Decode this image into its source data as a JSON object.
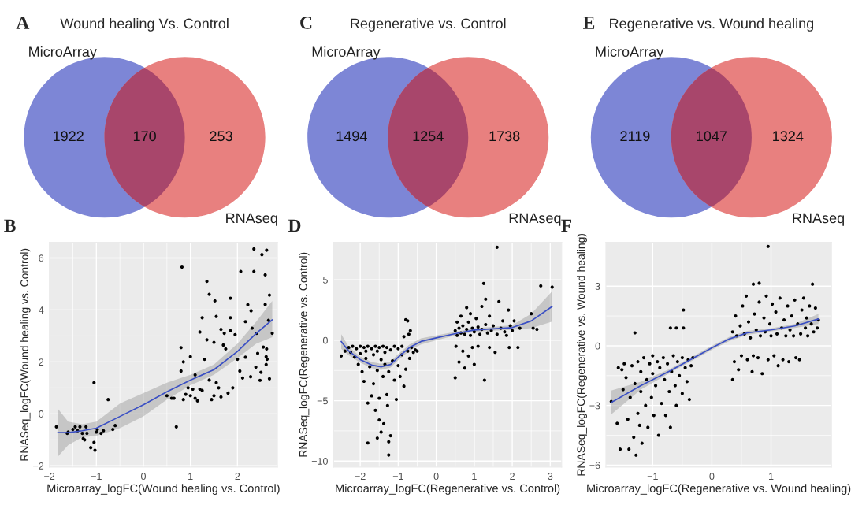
{
  "chart_data": [
    {
      "type": "other",
      "title": "Wound healing Vs. Control",
      "categories": [
        "MicroArray",
        null,
        "RNAseq"
      ],
      "values": [
        1922,
        170,
        253
      ],
      "colors": [
        "#7d86d6",
        "#a8466b",
        "#e8807f"
      ],
      "data_labels": true,
      "annotations": [
        "A"
      ]
    },
    {
      "type": "other",
      "title": "Regenerative vs. Control",
      "categories": [
        "MicroArray",
        null,
        "RNAseq"
      ],
      "values": [
        1494,
        1254,
        1738
      ],
      "colors": [
        "#7d86d6",
        "#a8466b",
        "#e8807f"
      ],
      "data_labels": true,
      "annotations": [
        "C"
      ]
    },
    {
      "type": "other",
      "title": "Regenerative vs. Wound healing",
      "categories": [
        "MicroArray",
        null,
        "RNAseq"
      ],
      "values": [
        2119,
        1047,
        1324
      ],
      "colors": [
        "#7d86d6",
        "#a8466b",
        "#e8807f"
      ],
      "data_labels": true,
      "annotations": [
        "E"
      ]
    },
    {
      "type": "scatter",
      "xlabel": "Microarray_logFC(Wound healing vs. Control)",
      "ylabel": "RNASeq_logFC(Wound healing vs. Control)",
      "xlim": [
        -2.0,
        2.85
      ],
      "ylim": [
        -2.05,
        6.6
      ],
      "xticks": [
        -2,
        -1,
        0,
        1,
        2
      ],
      "yticks": [
        -2,
        0,
        2,
        4,
        6
      ],
      "grid": true,
      "annotations": [
        "B"
      ],
      "series": [
        {
          "type": "scatter",
          "marker": "circle",
          "color": "#000000",
          "x": [
            -1.85,
            -1.62,
            -1.6,
            -1.5,
            -1.45,
            -1.4,
            -1.35,
            -1.3,
            -1.28,
            -1.25,
            -1.22,
            -1.2,
            -1.12,
            -1.05,
            -1.03,
            -1.05,
            -1.0,
            -0.98,
            -0.9,
            -0.85,
            -0.75,
            -0.65,
            -0.6,
            0.5,
            0.6,
            0.65,
            0.7,
            0.82,
            0.8,
            0.8,
            0.85,
            0.85,
            0.9,
            0.95,
            1.0,
            1.0,
            1.05,
            1.1,
            1.1,
            1.15,
            1.2,
            1.2,
            1.25,
            1.25,
            1.3,
            1.35,
            1.35,
            1.4,
            1.4,
            1.45,
            1.5,
            1.5,
            1.52,
            1.55,
            1.55,
            1.6,
            1.65,
            1.65,
            1.7,
            1.72,
            1.75,
            1.8,
            1.85,
            1.85,
            1.85,
            2.07,
            1.9,
            1.95,
            2.0,
            2.05,
            2.35,
            2.52,
            2.62,
            2.35,
            2.59,
            2.68,
            2.59,
            2.22,
            2.29,
            2.31,
            2.74,
            2.66,
            2.41,
            2.17,
            2.43,
            2.55,
            2.62,
            2.61,
            2.63,
            2.61,
            2.39,
            2.5,
            2.48,
            2.68,
            2.28,
            2.11,
            2.17
          ],
          "values": [
            -0.5,
            -0.75,
            -0.7,
            -0.6,
            -0.5,
            -0.65,
            -0.5,
            -0.75,
            -0.95,
            -1.0,
            -0.5,
            -0.75,
            -1.3,
            -1.1,
            -1.4,
            1.2,
            -0.7,
            -0.6,
            -0.75,
            -0.65,
            0.55,
            -0.6,
            -0.45,
            0.7,
            0.6,
            0.6,
            -0.5,
            5.65,
            2.55,
            1.65,
            2.0,
            0.55,
            0.75,
            1.0,
            2.2,
            0.7,
            0.95,
            1.5,
            0.6,
            0.5,
            0.95,
            3.15,
            3.7,
            0.9,
            2.1,
            5.1,
            2.85,
            4.6,
            1.3,
            0.55,
            0.7,
            2.75,
            4.35,
            3.75,
            1.2,
            1.0,
            3.25,
            0.65,
            2.65,
            3.1,
            2.5,
            0.8,
            4.45,
            3.7,
            3.2,
            5.48,
            1.0,
            3.05,
            2.1,
            1.65,
            6.35,
            6.13,
            6.3,
            5.48,
            5.35,
            4.57,
            4.21,
            4.2,
            3.97,
            3.3,
            3.1,
            3.6,
            3.1,
            3.55,
            2.33,
            2.57,
            2.5,
            2.2,
            2.1,
            1.9,
            1.8,
            1.6,
            1.29,
            1.35,
            1.43,
            1.38,
            2.18
          ]
        },
        {
          "type": "line",
          "color": "#3a4fc4",
          "x": [
            -1.82,
            -1.6,
            -1.3,
            -1.0,
            -0.5,
            0,
            0.5,
            1.0,
            1.5,
            2.0,
            2.4,
            2.74
          ],
          "values": [
            -0.72,
            -0.72,
            -0.65,
            -0.55,
            -0.1,
            0.35,
            0.85,
            1.3,
            1.7,
            2.4,
            3.1,
            3.62
          ],
          "lower": [
            -1.65,
            -1.2,
            -0.9,
            -0.85,
            -0.55,
            -0.1,
            0.55,
            1.1,
            1.5,
            2.15,
            2.7,
            2.95
          ],
          "upper": [
            0.2,
            -0.3,
            -0.4,
            -0.3,
            0.4,
            0.8,
            1.2,
            1.5,
            1.9,
            2.7,
            3.55,
            4.35
          ]
        }
      ]
    },
    {
      "type": "scatter",
      "xlabel": "Microarray_logFC(Regenerative vs. Control)",
      "ylabel": "RNASeq_logFC(Regenerative vs. Control)",
      "xlim": [
        -2.7,
        3.3
      ],
      "ylim": [
        -10.5,
        8.1
      ],
      "xticks": [
        -2,
        -1,
        0,
        1,
        2,
        3
      ],
      "yticks": [
        -10,
        -5,
        0,
        5
      ],
      "grid": true,
      "annotations": [
        "D"
      ],
      "series": [
        {
          "type": "scatter",
          "marker": "circle",
          "color": "#000000",
          "x": [
            -2.5,
            -2.4,
            -2.3,
            -2.25,
            -2.2,
            -2.15,
            -2.1,
            -2.05,
            -2.0,
            -2.0,
            -1.95,
            -1.9,
            -1.9,
            -1.85,
            -1.85,
            -1.8,
            -1.8,
            -1.8,
            -1.75,
            -1.7,
            -1.7,
            -1.65,
            -1.65,
            -1.6,
            -1.6,
            -1.55,
            -1.55,
            -1.55,
            -1.5,
            -1.5,
            -1.5,
            -1.45,
            -1.45,
            -1.4,
            -1.4,
            -1.38,
            -1.35,
            -1.35,
            -1.3,
            -1.3,
            -1.28,
            -1.25,
            -1.25,
            -1.25,
            -1.2,
            -1.2,
            -1.15,
            -1.1,
            -1.1,
            -1.05,
            -1.0,
            -1.0,
            -0.95,
            -0.9,
            -0.9,
            -0.85,
            -0.85,
            -0.8,
            -0.8,
            -0.75,
            -0.75,
            -0.72,
            -0.7,
            -0.68,
            -0.65,
            -0.6,
            -0.55,
            -0.5,
            0.5,
            0.5,
            0.52,
            0.55,
            0.55,
            0.6,
            0.6,
            0.65,
            0.65,
            0.7,
            0.7,
            0.75,
            0.75,
            0.8,
            0.8,
            0.85,
            0.85,
            0.9,
            0.9,
            0.95,
            0.95,
            1.0,
            1.0,
            1.05,
            1.1,
            1.1,
            1.15,
            1.2,
            1.2,
            1.25,
            1.27,
            1.3,
            1.3,
            1.35,
            1.4,
            1.4,
            1.45,
            1.5,
            1.55,
            1.6,
            1.6,
            1.65,
            1.7,
            1.75,
            1.8,
            1.85,
            1.9,
            1.92,
            1.95,
            2.0,
            2.05,
            2.15,
            2.2,
            2.5,
            2.55,
            2.65,
            2.75,
            3.05
          ],
          "values": [
            -1.3,
            -0.9,
            -0.6,
            -1.0,
            -0.5,
            -1.4,
            -0.7,
            -2.0,
            -0.5,
            -1.1,
            -2.6,
            -0.6,
            -3.4,
            -1.5,
            -0.9,
            -8.5,
            -5.2,
            -0.5,
            -2.2,
            -4.6,
            -0.7,
            -1.2,
            -3.6,
            -5.8,
            -0.5,
            -8.1,
            -2.5,
            -0.9,
            -6.6,
            -4.8,
            -0.6,
            -7.6,
            -1.6,
            -3.0,
            -0.5,
            -6.9,
            -2.0,
            -1.0,
            -4.5,
            -0.6,
            -5.4,
            -9.5,
            -8.4,
            -2.6,
            -7.9,
            -0.8,
            -1.7,
            -3.3,
            -0.5,
            -4.9,
            -2.1,
            -0.7,
            -3.0,
            -1.2,
            -0.5,
            -3.8,
            0.3,
            1.7,
            -2.4,
            1.6,
            -0.9,
            0.5,
            -1.5,
            0.8,
            -0.6,
            -1.0,
            -0.8,
            -0.9,
            -3.1,
            0.8,
            -0.5,
            1.5,
            0.4,
            -1.8,
            1.0,
            2.0,
            0.6,
            -0.9,
            1.2,
            -2.3,
            0.5,
            2.7,
            0.9,
            -1.3,
            1.5,
            0.4,
            2.2,
            -0.6,
            1.0,
            -2.0,
            0.7,
            1.8,
            -0.5,
            1.1,
            0.5,
            2.8,
            0.9,
            4.7,
            -3.3,
            3.4,
            1.3,
            0.6,
            -0.6,
            2.0,
            0.8,
            1.2,
            -1.0,
            7.7,
            0.5,
            3.2,
            1.0,
            1.6,
            0.7,
            0.4,
            2.5,
            -0.6,
            1.2,
            0.8,
            1.6,
            -0.6,
            1.0,
            2.2,
            1.0,
            0.9,
            4.5,
            4.4
          ]
        },
        {
          "type": "line",
          "color": "#3a4fc4",
          "x": [
            -2.5,
            -2.3,
            -2.0,
            -1.7,
            -1.45,
            -1.2,
            -1.0,
            -0.7,
            -0.4,
            0,
            0.5,
            1.0,
            1.5,
            2.0,
            2.5,
            3.05
          ],
          "values": [
            -0.1,
            -0.9,
            -1.6,
            -2.05,
            -2.2,
            -2.0,
            -1.4,
            -0.6,
            -0.1,
            0.2,
            0.55,
            0.85,
            0.95,
            1.05,
            1.6,
            2.8
          ],
          "lower": [
            -0.7,
            -1.25,
            -1.85,
            -2.3,
            -2.45,
            -2.25,
            -1.65,
            -0.85,
            -0.35,
            0.0,
            0.4,
            0.7,
            0.8,
            0.85,
            1.0,
            1.55
          ],
          "upper": [
            0.5,
            -0.55,
            -1.35,
            -1.8,
            -1.95,
            -1.75,
            -1.15,
            -0.35,
            0.15,
            0.4,
            0.7,
            1.0,
            1.1,
            1.25,
            2.2,
            4.05
          ]
        }
      ]
    },
    {
      "type": "scatter",
      "xlabel": "Microarray_logFC(Regenerative vs. Wound healing)",
      "ylabel": "RNASeq_logFC(Regenerative vs. Wound healing)",
      "xlim": [
        -1.79,
        2.02
      ],
      "ylim": [
        -6.1,
        5.2
      ],
      "xticks": [
        -1,
        0,
        1
      ],
      "yticks": [
        -6,
        -3,
        0,
        3
      ],
      "grid": true,
      "annotations": [
        "F"
      ],
      "series": [
        {
          "type": "scatter",
          "marker": "circle",
          "color": "#000000",
          "x": [
            -1.7,
            -1.6,
            -1.58,
            -1.55,
            -1.52,
            -1.5,
            -1.48,
            -1.45,
            -1.42,
            -1.4,
            -1.38,
            -1.35,
            -1.32,
            -1.3,
            -1.3,
            -1.28,
            -1.25,
            -1.25,
            -1.22,
            -1.2,
            -1.2,
            -1.18,
            -1.15,
            -1.12,
            -1.1,
            -1.08,
            -1.05,
            -1.02,
            -1.0,
            -1.0,
            -0.98,
            -0.95,
            -0.92,
            -0.9,
            -0.88,
            -0.85,
            -0.82,
            -0.8,
            -0.78,
            -0.75,
            -0.72,
            -0.7,
            -0.7,
            -0.68,
            -0.65,
            -0.62,
            -0.6,
            -0.6,
            -0.58,
            -0.55,
            -0.5,
            -0.5,
            -0.48,
            -0.48,
            -0.45,
            -0.42,
            -0.4,
            -0.38,
            -0.35,
            -0.32,
            0.35,
            0.35,
            0.38,
            0.4,
            0.42,
            0.45,
            0.48,
            0.5,
            0.52,
            0.55,
            0.58,
            0.6,
            0.62,
            0.65,
            0.68,
            0.7,
            0.7,
            0.72,
            0.75,
            0.78,
            0.8,
            0.8,
            0.82,
            0.85,
            0.88,
            0.9,
            0.92,
            0.95,
            0.95,
            0.98,
            1.0,
            1.02,
            1.05,
            1.08,
            1.1,
            1.12,
            1.15,
            1.18,
            1.2,
            1.22,
            1.25,
            1.28,
            1.3,
            1.32,
            1.35,
            1.38,
            1.4,
            1.42,
            1.45,
            1.48,
            1.5,
            1.52,
            1.55,
            1.58,
            1.6,
            1.62,
            1.65,
            1.68,
            1.7,
            1.72,
            1.75,
            1.78,
            1.8
          ],
          "values": [
            -2.8,
            -3.9,
            -1.1,
            -5.2,
            -1.2,
            -2.2,
            -0.9,
            -1.6,
            -3.7,
            -5.2,
            -2.6,
            -1.0,
            -4.6,
            0.65,
            -1.9,
            -5.5,
            -3.4,
            -0.8,
            -4.0,
            -2.3,
            -1.3,
            -4.9,
            -0.6,
            -3.0,
            -1.7,
            -4.1,
            -0.9,
            -2.6,
            -0.5,
            -1.4,
            -3.5,
            -2.0,
            -0.8,
            -4.5,
            -1.1,
            -2.9,
            -0.6,
            -1.7,
            -3.5,
            -0.9,
            -2.3,
            0.9,
            -4.1,
            -1.3,
            -0.5,
            -2.0,
            0.9,
            -3.0,
            -0.8,
            -1.5,
            -0.6,
            -2.4,
            1.8,
            0.9,
            -1.1,
            -1.8,
            -0.7,
            -2.7,
            -1.0,
            -0.6,
            -1.7,
            0.7,
            -0.8,
            1.5,
            0.5,
            -1.2,
            1.0,
            -0.5,
            2.0,
            0.6,
            2.5,
            -0.7,
            1.2,
            0.4,
            -1.3,
            3.1,
            -0.5,
            1.6,
            0.8,
            -0.6,
            3.15,
            2.2,
            0.5,
            -1.4,
            1.4,
            0.7,
            2.5,
            5.0,
            -0.7,
            1.1,
            0.5,
            2.1,
            -0.5,
            1.7,
            0.6,
            -1.0,
            2.4,
            0.9,
            -0.7,
            1.3,
            0.5,
            2.0,
            -0.8,
            0.8,
            1.5,
            0.5,
            2.3,
            -0.6,
            1.1,
            -0.7,
            0.6,
            1.8,
            2.4,
            0.9,
            1.4,
            0.5,
            2.0,
            1.1,
            3.1,
            0.7,
            1.9,
            0.9,
            1.3
          ]
        },
        {
          "type": "line",
          "color": "#3a4fc4",
          "x": [
            -1.7,
            -1.2,
            -0.7,
            -0.3,
            0,
            0.3,
            0.6,
            1.0,
            1.4,
            1.8
          ],
          "values": [
            -2.85,
            -2.0,
            -1.25,
            -0.6,
            -0.1,
            0.35,
            0.65,
            0.8,
            1.0,
            1.35
          ],
          "lower": [
            -3.45,
            -2.2,
            -1.35,
            -0.7,
            -0.2,
            0.25,
            0.55,
            0.72,
            0.9,
            1.1
          ],
          "upper": [
            -2.25,
            -1.8,
            -1.15,
            -0.5,
            0.0,
            0.45,
            0.75,
            0.88,
            1.1,
            1.6
          ]
        }
      ]
    }
  ]
}
